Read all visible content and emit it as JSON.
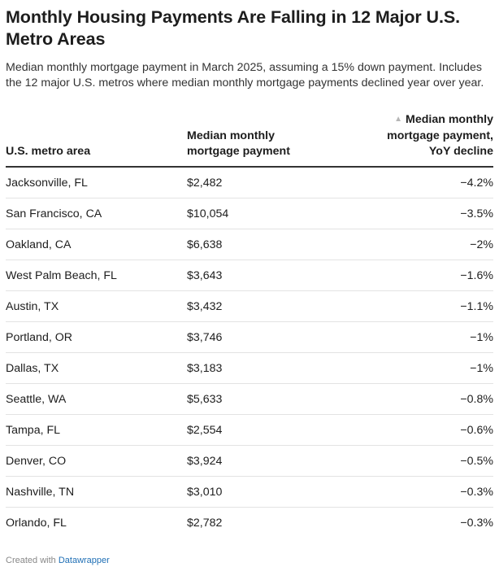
{
  "header": {
    "title": "Monthly Housing Payments Are Falling in 12 Major U.S. Metro Areas",
    "subtitle": "Median monthly mortgage payment in March 2025, assuming a 15% down payment. Includes the 12 major U.S. metros where median monthly mortgage payments declined year over year."
  },
  "table": {
    "columns": [
      {
        "label": "U.S. metro area"
      },
      {
        "label": "Median monthly mortgage payment"
      },
      {
        "label": "Median monthly mortgage payment, YoY decline",
        "sort_icon": "triangle-up-icon"
      }
    ],
    "rows": [
      {
        "metro": "Jacksonville, FL",
        "payment": "$2,482",
        "decline": "−4.2%"
      },
      {
        "metro": "San Francisco, CA",
        "payment": "$10,054",
        "decline": "−3.5%"
      },
      {
        "metro": "Oakland, CA",
        "payment": "$6,638",
        "decline": "−2%"
      },
      {
        "metro": "West Palm Beach, FL",
        "payment": "$3,643",
        "decline": "−1.6%"
      },
      {
        "metro": "Austin, TX",
        "payment": "$3,432",
        "decline": "−1.1%"
      },
      {
        "metro": "Portland, OR",
        "payment": "$3,746",
        "decline": "−1%"
      },
      {
        "metro": "Dallas, TX",
        "payment": "$3,183",
        "decline": "−1%"
      },
      {
        "metro": "Seattle, WA",
        "payment": "$5,633",
        "decline": "−0.8%"
      },
      {
        "metro": "Tampa, FL",
        "payment": "$2,554",
        "decline": "−0.6%"
      },
      {
        "metro": "Denver, CO",
        "payment": "$3,924",
        "decline": "−0.5%"
      },
      {
        "metro": "Nashville, TN",
        "payment": "$3,010",
        "decline": "−0.3%"
      },
      {
        "metro": "Orlando, FL",
        "payment": "$2,782",
        "decline": "−0.3%"
      }
    ]
  },
  "footer": {
    "prefix": "Created with",
    "link": "Datawrapper"
  },
  "colors": {
    "link": "#1f6fb5",
    "header_rule": "#333333",
    "row_rule": "#e3e3e3"
  }
}
